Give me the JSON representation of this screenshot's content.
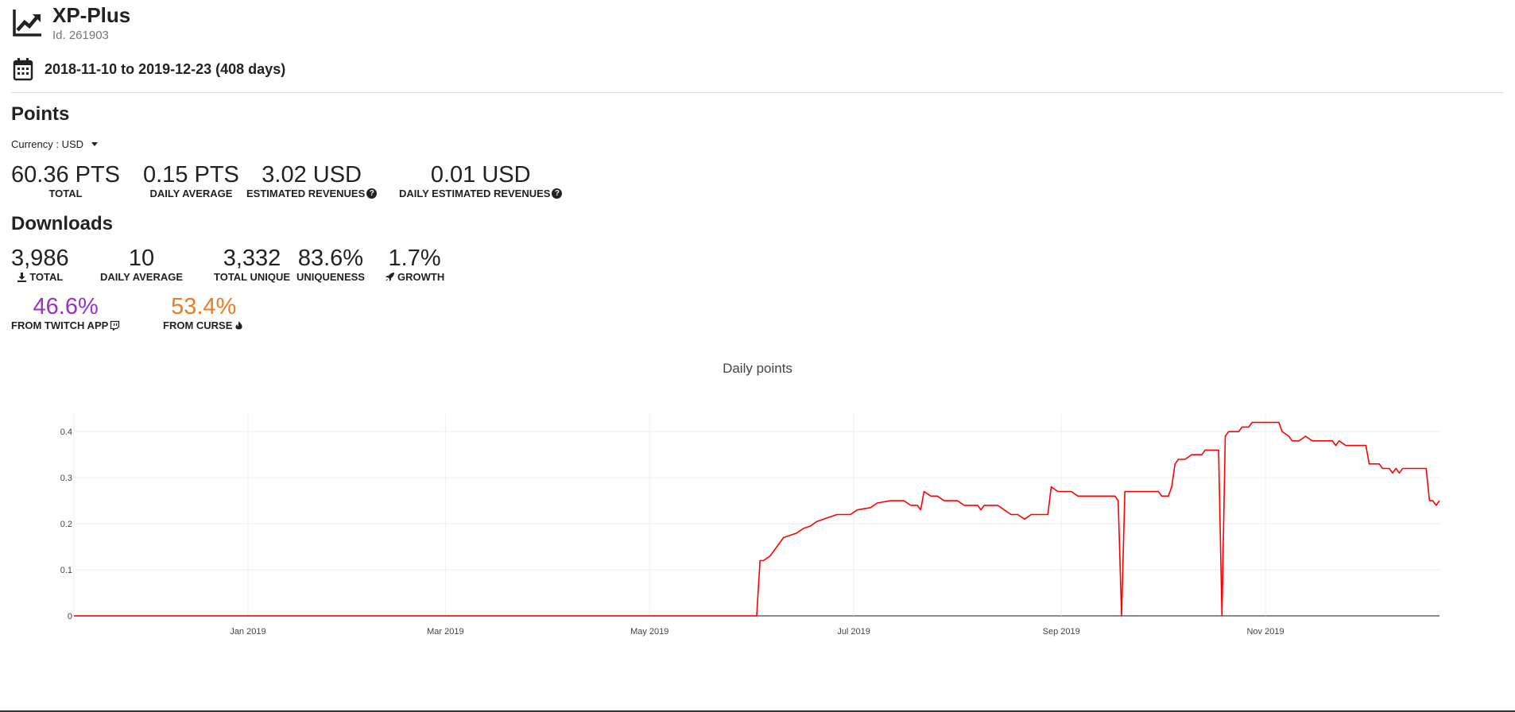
{
  "app": {
    "title": "XP-Plus",
    "id_text": "Id. 261903",
    "date_range": "2018-11-10 to 2019-12-23 (408 days)"
  },
  "points": {
    "heading": "Points",
    "currency_label": "Currency : USD",
    "stats": [
      {
        "value": "60.36 PTS",
        "label": "TOTAL"
      },
      {
        "value": "0.15 PTS",
        "label": "DAILY AVERAGE"
      },
      {
        "value": "3.02 USD",
        "label": "ESTIMATED REVENUES"
      },
      {
        "value": "0.01 USD",
        "label": "DAILY ESTIMATED REVENUES"
      }
    ]
  },
  "downloads": {
    "heading": "Downloads",
    "stats": [
      {
        "value": "3,986",
        "label": "TOTAL"
      },
      {
        "value": "10",
        "label": "DAILY AVERAGE"
      },
      {
        "value": "3,332",
        "label": "TOTAL UNIQUE"
      },
      {
        "value": "83.6%",
        "label": "UNIQUENESS"
      },
      {
        "value": "1.7%",
        "label": "GROWTH"
      }
    ],
    "sources": [
      {
        "value": "46.6%",
        "label": "FROM TWITCH APP",
        "color": "#9b30c9"
      },
      {
        "value": "53.4%",
        "label": "FROM CURSE",
        "color": "#f07a1e"
      }
    ]
  },
  "colors": {
    "line": "#ff0000",
    "twitch": "#9b30c9",
    "curse": "#f07a1e"
  },
  "chart_data": {
    "type": "line",
    "title": "Daily points",
    "xlabel": "",
    "ylabel": "",
    "ylim": [
      0,
      0.44
    ],
    "xlim": [
      "2018-11-10",
      "2019-12-23"
    ],
    "x_ticks": [
      "Jan 2019",
      "Mar 2019",
      "May 2019",
      "Jul 2019",
      "Sep 2019",
      "Nov 2019"
    ],
    "y_ticks": [
      "0",
      "0.1",
      "0.2",
      "0.3",
      "0.4"
    ],
    "grid": true,
    "series": [
      {
        "points": [
          [
            "2018-11-10",
            0
          ],
          [
            "2019-06-02",
            0
          ],
          [
            "2019-06-03",
            0.12
          ],
          [
            "2019-06-04",
            0.12
          ],
          [
            "2019-06-06",
            0.13
          ],
          [
            "2019-06-08",
            0.15
          ],
          [
            "2019-06-10",
            0.17
          ],
          [
            "2019-06-12",
            0.175
          ],
          [
            "2019-06-14",
            0.18
          ],
          [
            "2019-06-16",
            0.19
          ],
          [
            "2019-06-18",
            0.195
          ],
          [
            "2019-06-20",
            0.205
          ],
          [
            "2019-06-22",
            0.21
          ],
          [
            "2019-06-24",
            0.215
          ],
          [
            "2019-06-26",
            0.22
          ],
          [
            "2019-06-30",
            0.22
          ],
          [
            "2019-07-02",
            0.23
          ],
          [
            "2019-07-06",
            0.235
          ],
          [
            "2019-07-08",
            0.245
          ],
          [
            "2019-07-12",
            0.25
          ],
          [
            "2019-07-16",
            0.25
          ],
          [
            "2019-07-18",
            0.24
          ],
          [
            "2019-07-20",
            0.24
          ],
          [
            "2019-07-21",
            0.23
          ],
          [
            "2019-07-22",
            0.27
          ],
          [
            "2019-07-24",
            0.26
          ],
          [
            "2019-07-26",
            0.26
          ],
          [
            "2019-07-28",
            0.25
          ],
          [
            "2019-08-01",
            0.25
          ],
          [
            "2019-08-03",
            0.24
          ],
          [
            "2019-08-07",
            0.24
          ],
          [
            "2019-08-08",
            0.23
          ],
          [
            "2019-08-09",
            0.24
          ],
          [
            "2019-08-13",
            0.24
          ],
          [
            "2019-08-15",
            0.23
          ],
          [
            "2019-08-17",
            0.22
          ],
          [
            "2019-08-19",
            0.22
          ],
          [
            "2019-08-21",
            0.21
          ],
          [
            "2019-08-23",
            0.22
          ],
          [
            "2019-08-28",
            0.22
          ],
          [
            "2019-08-29",
            0.28
          ],
          [
            "2019-08-31",
            0.27
          ],
          [
            "2019-09-04",
            0.27
          ],
          [
            "2019-09-06",
            0.26
          ],
          [
            "2019-09-17",
            0.26
          ],
          [
            "2019-09-18",
            0.25
          ],
          [
            "2019-09-19",
            0.0
          ],
          [
            "2019-09-20",
            0.27
          ],
          [
            "2019-09-30",
            0.27
          ],
          [
            "2019-10-01",
            0.26
          ],
          [
            "2019-10-03",
            0.26
          ],
          [
            "2019-10-04",
            0.28
          ],
          [
            "2019-10-05",
            0.33
          ],
          [
            "2019-10-06",
            0.34
          ],
          [
            "2019-10-08",
            0.34
          ],
          [
            "2019-10-10",
            0.35
          ],
          [
            "2019-10-13",
            0.35
          ],
          [
            "2019-10-14",
            0.36
          ],
          [
            "2019-10-18",
            0.36
          ],
          [
            "2019-10-19",
            0.0
          ],
          [
            "2019-10-20",
            0.39
          ],
          [
            "2019-10-21",
            0.4
          ],
          [
            "2019-10-24",
            0.4
          ],
          [
            "2019-10-25",
            0.41
          ],
          [
            "2019-10-27",
            0.41
          ],
          [
            "2019-10-28",
            0.42
          ],
          [
            "2019-11-05",
            0.42
          ],
          [
            "2019-11-06",
            0.4
          ],
          [
            "2019-11-08",
            0.39
          ],
          [
            "2019-11-09",
            0.38
          ],
          [
            "2019-11-11",
            0.38
          ],
          [
            "2019-11-13",
            0.39
          ],
          [
            "2019-11-15",
            0.38
          ],
          [
            "2019-11-21",
            0.38
          ],
          [
            "2019-11-22",
            0.37
          ],
          [
            "2019-11-23",
            0.38
          ],
          [
            "2019-11-25",
            0.37
          ],
          [
            "2019-12-01",
            0.37
          ],
          [
            "2019-12-02",
            0.33
          ],
          [
            "2019-12-05",
            0.33
          ],
          [
            "2019-12-06",
            0.32
          ],
          [
            "2019-12-08",
            0.32
          ],
          [
            "2019-12-09",
            0.31
          ],
          [
            "2019-12-10",
            0.32
          ],
          [
            "2019-12-11",
            0.31
          ],
          [
            "2019-12-12",
            0.32
          ],
          [
            "2019-12-15",
            0.32
          ],
          [
            "2019-12-16",
            0.32
          ],
          [
            "2019-12-17",
            0.32
          ],
          [
            "2019-12-18",
            0.32
          ],
          [
            "2019-12-19",
            0.32
          ],
          [
            "2019-12-20",
            0.25
          ],
          [
            "2019-12-21",
            0.25
          ],
          [
            "2019-12-22",
            0.24
          ],
          [
            "2019-12-23",
            0.25
          ]
        ]
      }
    ]
  }
}
